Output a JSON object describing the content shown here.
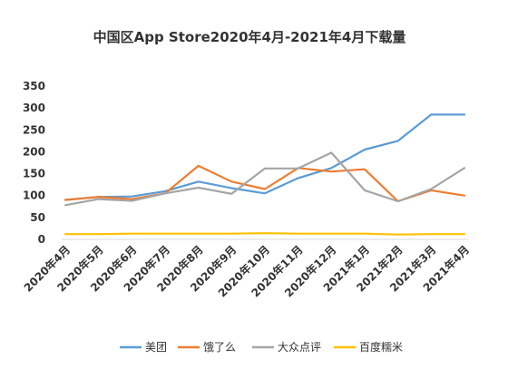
{
  "chart_data": {
    "type": "line",
    "title": "中国区App Store2020年4月-2021年4月下载量",
    "xlabel": "",
    "ylabel": "",
    "categories": [
      "2020年4月",
      "2020年5月",
      "2020年6月",
      "2020年7月",
      "2020年8月",
      "2020年9月",
      "2020年10月",
      "2020年11月",
      "2020年12月",
      "2021年1月",
      "2021年2月",
      "2021年3月",
      "2021年4月"
    ],
    "ylim": [
      0,
      350
    ],
    "yticks": [
      0,
      50,
      100,
      150,
      200,
      250,
      300,
      350
    ],
    "grid": false,
    "legend_position": "bottom",
    "series": [
      {
        "name": "美团",
        "color": "#5B9BD5",
        "values": [
          90,
          97,
          98,
          110,
          132,
          117,
          105,
          140,
          163,
          205,
          225,
          285,
          285
        ]
      },
      {
        "name": "饿了么",
        "color": "#ED7D31",
        "values": [
          90,
          97,
          92,
          105,
          168,
          132,
          115,
          163,
          155,
          160,
          87,
          112,
          100
        ]
      },
      {
        "name": "大众点评",
        "color": "#A5A5A5",
        "values": [
          78,
          92,
          88,
          105,
          118,
          104,
          162,
          162,
          198,
          112,
          87,
          115,
          163
        ]
      },
      {
        "name": "百度糯米",
        "color": "#FFC000",
        "values": [
          12,
          12,
          13,
          13,
          13,
          13,
          14,
          13,
          13,
          13,
          11,
          12,
          12
        ]
      }
    ]
  }
}
